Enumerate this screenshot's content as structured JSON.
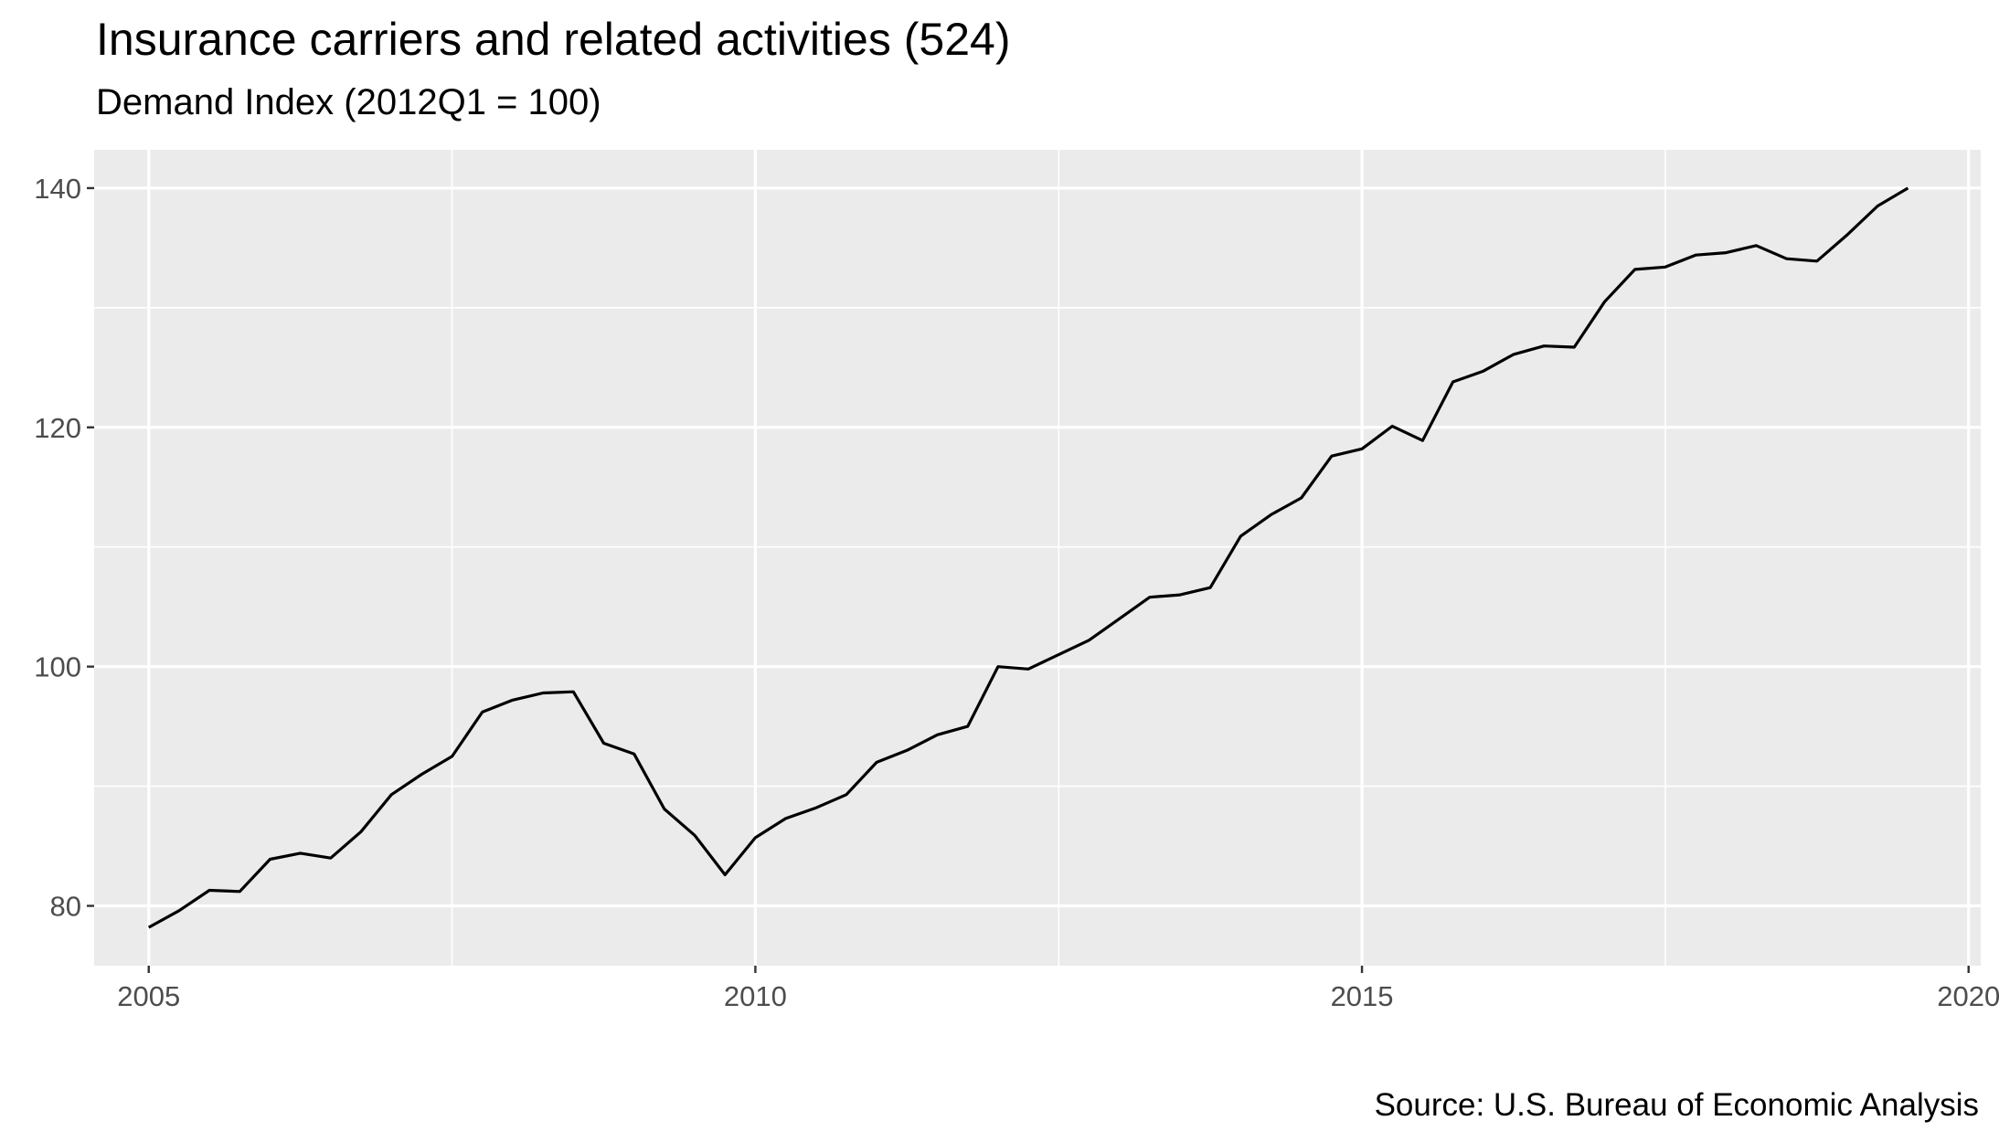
{
  "chart_data": {
    "type": "line",
    "title": "Insurance carriers and related activities (524)",
    "subtitle": "Demand Index (2012Q1 = 100)",
    "caption": "Source: U.S. Bureau of Economic Analysis",
    "xlabel": "",
    "ylabel": "",
    "xlim": [
      2004.55,
      2020.1
    ],
    "ylim": [
      75,
      143.2
    ],
    "x_ticks": [
      2005,
      2010,
      2015,
      2020
    ],
    "y_ticks": [
      80,
      100,
      120,
      140
    ],
    "grid": true,
    "legend": "none",
    "colors": {
      "panel": "#ebebeb",
      "grid": "#ffffff",
      "line": "#000000",
      "ticks": "#4d4d4d"
    },
    "series": [
      {
        "x": [
          2005.0,
          2005.25,
          2005.5,
          2005.75,
          2006.0,
          2006.25,
          2006.5,
          2006.75,
          2007.0,
          2007.25,
          2007.5,
          2007.75,
          2008.0,
          2008.25,
          2008.5,
          2008.75,
          2009.0,
          2009.25,
          2009.5,
          2009.75,
          2010.0,
          2010.25,
          2010.5,
          2010.75,
          2011.0,
          2011.25,
          2011.5,
          2011.75,
          2012.0,
          2012.25,
          2012.5,
          2012.75,
          2013.0,
          2013.25,
          2013.5,
          2013.75,
          2014.0,
          2014.25,
          2014.5,
          2014.75,
          2015.0,
          2015.25,
          2015.5,
          2015.75,
          2016.0,
          2016.25,
          2016.5,
          2016.75,
          2017.0,
          2017.25,
          2017.5,
          2017.75,
          2018.0,
          2018.25,
          2018.5,
          2018.75,
          2019.0,
          2019.25,
          2019.5
        ],
        "values": [
          78.2,
          79.6,
          81.3,
          81.2,
          83.9,
          84.4,
          84.0,
          86.2,
          89.3,
          91.0,
          92.5,
          96.2,
          97.2,
          97.8,
          97.9,
          93.6,
          92.7,
          88.1,
          85.9,
          82.6,
          85.7,
          87.3,
          88.2,
          89.3,
          92.0,
          93.0,
          94.3,
          95.0,
          100.0,
          99.8,
          101.0,
          102.2,
          104.0,
          105.8,
          106.0,
          106.6,
          110.9,
          112.7,
          114.1,
          117.6,
          118.2,
          120.1,
          118.9,
          123.8,
          124.7,
          126.1,
          126.8,
          126.7,
          130.5,
          133.2,
          133.4,
          134.4,
          134.6,
          135.2,
          134.1,
          133.9,
          136.1,
          138.5,
          140.0
        ]
      }
    ]
  }
}
